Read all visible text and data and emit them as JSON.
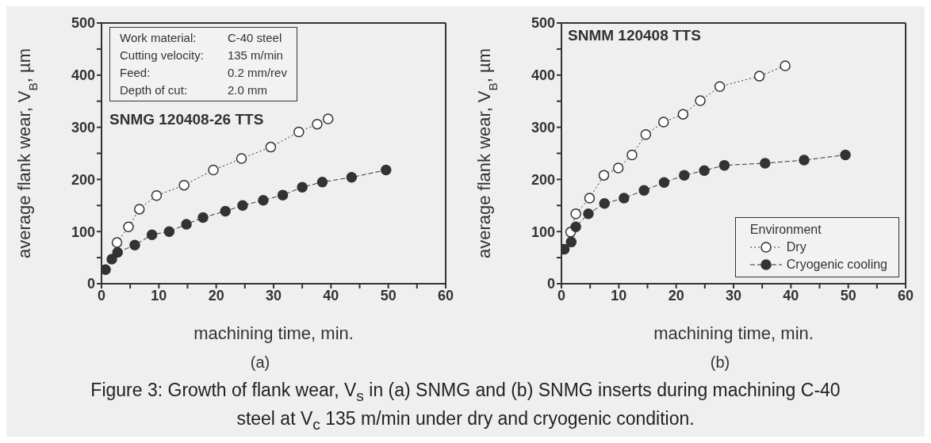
{
  "chart_data": [
    {
      "type": "line",
      "xlabel": "machining time, min.",
      "ylabel": "average flank wear, V$_{B}$, µm",
      "xlim": [
        0,
        60
      ],
      "xticks": [
        0,
        {
          "value": 5,
          "label": null
        },
        10,
        {
          "value": 15,
          "label": null
        },
        20,
        {
          "value": 25,
          "label": null
        },
        30,
        {
          "value": 35,
          "label": null
        },
        40,
        {
          "value": 45,
          "label": null
        },
        50,
        {
          "value": 55,
          "label": null
        },
        60
      ],
      "ylim": [
        0,
        500
      ],
      "yticks": [
        0,
        {
          "value": 50,
          "label": null
        },
        100,
        {
          "value": 150,
          "label": null
        },
        200,
        {
          "value": 250,
          "label": null
        },
        300,
        {
          "value": 350,
          "label": null
        },
        400,
        {
          "value": 450,
          "label": null
        },
        500
      ],
      "marker": "circle",
      "annotations": [
        "Work material:",
        "C-40 steel",
        "Cutting velocity:",
        "135 m/min",
        "Feed:",
        "0.2 mm/rev",
        "Depth of cut:",
        "2.0 mm",
        "SNMG 120408-26 TTS",
        "(a)",
        "Figure 3: Growth of flank wear, V$_{s}$ in (a) SNMG and (b) SNMG inserts during machining C-40 steel at V$_{c}$ 135 m/min under dry and cryogenic condition."
      ],
      "series": [
        {
          "color": "#333333",
          "line_style": "dotted",
          "x": [
            2.7,
            4.7,
            6.6,
            9.6,
            14.4,
            19.5,
            24.4,
            29.5,
            34.4,
            37.6,
            39.5
          ],
          "values": [
            79,
            109,
            143,
            169,
            189,
            218,
            240,
            262,
            291,
            306,
            316
          ]
        },
        {
          "color": "#333333",
          "line_style": "dashed",
          "x": [
            0.7,
            1.8,
            2.8,
            5.8,
            8.8,
            11.8,
            14.8,
            17.7,
            21.6,
            24.6,
            28.2,
            31.6,
            35,
            38.5,
            43.6,
            49.6
          ],
          "values": [
            27,
            47,
            60,
            74,
            94,
            100,
            114,
            127,
            139,
            150,
            160,
            170,
            185,
            195,
            204,
            218
          ]
        }
      ]
    },
    {
      "type": "line",
      "xlabel": "machining time, min.",
      "ylabel": "average flank wear, V$_{B}$, µm",
      "xlim": [
        0,
        60
      ],
      "xticks": [
        0,
        {
          "value": 5,
          "label": null
        },
        10,
        {
          "value": 15,
          "label": null
        },
        20,
        {
          "value": 25,
          "label": null
        },
        30,
        {
          "value": 35,
          "label": null
        },
        40,
        {
          "value": 45,
          "label": null
        },
        50,
        {
          "value": 55,
          "label": null
        },
        60
      ],
      "ylim": [
        0,
        500
      ],
      "yticks": [
        0,
        {
          "value": 50,
          "label": null
        },
        100,
        {
          "value": 150,
          "label": null
        },
        200,
        {
          "value": 250,
          "label": null
        },
        300,
        {
          "value": 350,
          "label": null
        },
        400,
        {
          "value": 450,
          "label": null
        },
        500
      ],
      "marker": "circle",
      "legend": "bottom right",
      "legend_title": "Environment",
      "annotations": [
        "SNMM 120408 TTS",
        "(b)"
      ],
      "series": [
        {
          "name": "Dry",
          "color": "#333333",
          "line_style": "dotted",
          "x": [
            1.6,
            2.5,
            4.9,
            7.4,
            9.9,
            12.3,
            14.7,
            17.8,
            21.2,
            24.2,
            27.6,
            34.5,
            39
          ],
          "values": [
            99,
            134,
            164,
            208,
            222,
            247,
            286,
            310,
            325,
            351,
            378,
            398,
            418
          ]
        },
        {
          "name": "Cryogenic cooling",
          "color": "#333333",
          "line_style": "dashed",
          "x": [
            0.5,
            1.7,
            2.5,
            4.7,
            7.5,
            10.9,
            14.4,
            17.9,
            21.4,
            24.9,
            28.4,
            35.5,
            42.3,
            49.5
          ],
          "values": [
            66,
            80,
            109,
            134,
            154,
            164,
            179,
            194,
            208,
            217,
            227,
            231,
            237,
            247
          ]
        }
      ]
    }
  ]
}
